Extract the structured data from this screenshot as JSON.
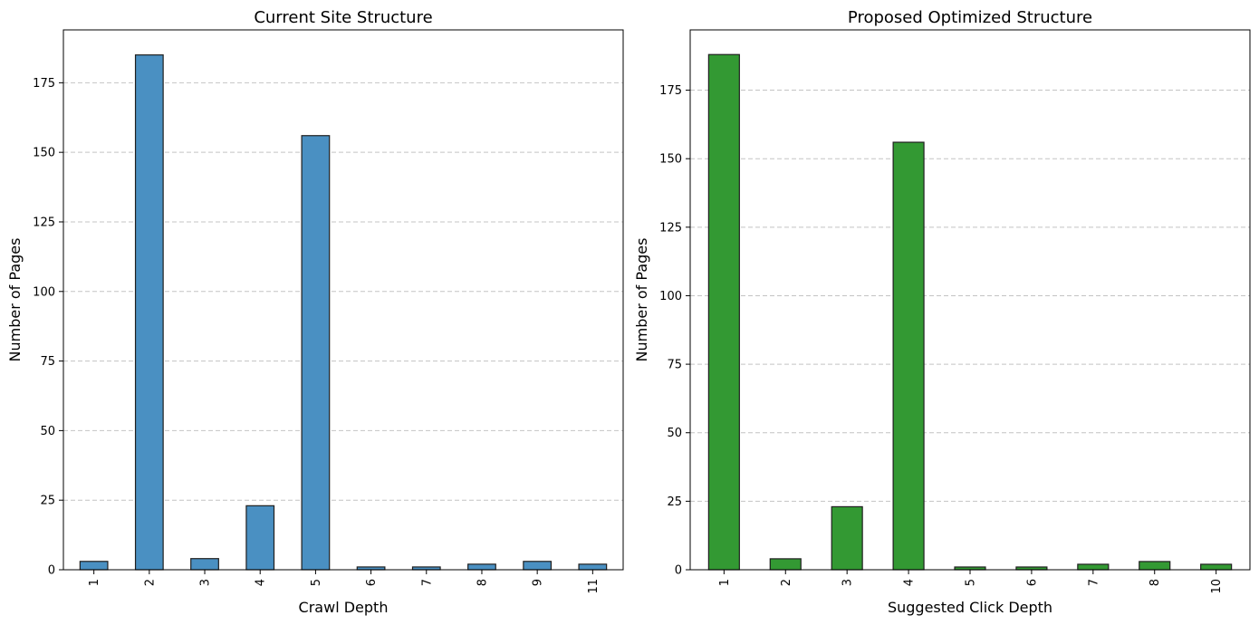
{
  "chart_data": [
    {
      "type": "bar",
      "title": "Current Site Structure",
      "xlabel": "Crawl Depth",
      "ylabel": "Number of Pages",
      "categories": [
        "1",
        "2",
        "3",
        "4",
        "5",
        "6",
        "7",
        "8",
        "9",
        "11"
      ],
      "values": [
        3,
        185,
        4,
        23,
        156,
        1,
        1,
        2,
        3,
        2
      ],
      "ylim": [
        0,
        194
      ],
      "yticks": [
        0,
        25,
        50,
        75,
        100,
        125,
        150,
        175
      ],
      "grid": "y-dashed",
      "color": "#4a90c2",
      "legend": "none"
    },
    {
      "type": "bar",
      "title": "Proposed Optimized Structure",
      "xlabel": "Suggested Click Depth",
      "ylabel": "Number of Pages",
      "categories": [
        "1",
        "2",
        "3",
        "4",
        "5",
        "6",
        "7",
        "8",
        "10"
      ],
      "values": [
        188,
        4,
        23,
        156,
        1,
        1,
        2,
        3,
        2
      ],
      "ylim": [
        0,
        197
      ],
      "yticks": [
        0,
        25,
        50,
        75,
        100,
        125,
        150,
        175
      ],
      "grid": "y-dashed",
      "color": "#339933",
      "legend": "none"
    }
  ]
}
